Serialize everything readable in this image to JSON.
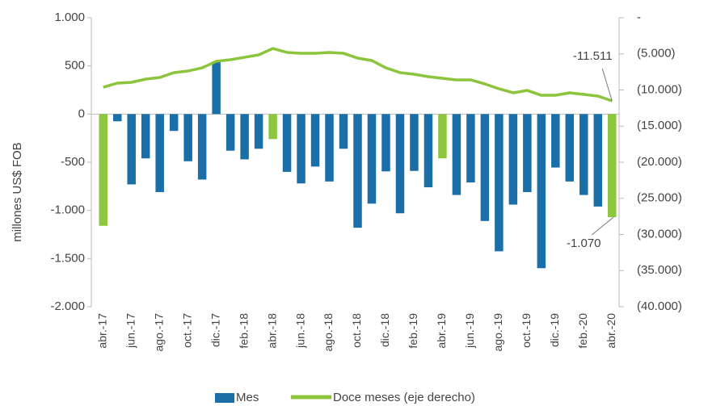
{
  "chart_data": {
    "type": "bar",
    "y_label": "millones US$ FOB",
    "categories": [
      "abr.-17",
      null,
      "jun.-17",
      null,
      "ago.-17",
      null,
      "oct.-17",
      null,
      "dic.-17",
      null,
      "feb.-18",
      null,
      "abr.-18",
      null,
      "jun.-18",
      null,
      "ago.-18",
      null,
      "oct.-18",
      null,
      "dic.-18",
      null,
      "feb.-19",
      null,
      "abr.-19",
      null,
      "jun.-19",
      null,
      "ago.-19",
      null,
      "oct.-19",
      null,
      "dic.-19",
      null,
      "feb.-20",
      null,
      "abr.-20"
    ],
    "ylim": [
      -2000,
      1000
    ],
    "yticks": [
      {
        "value": 1000,
        "label": "1.000"
      },
      500,
      0,
      -500,
      {
        "value": -1000,
        "label": "-1.000"
      },
      {
        "value": -1500,
        "label": "-1.500"
      },
      {
        "value": -2000,
        "label": "-2.000"
      }
    ],
    "y2lim": [
      -40000,
      0
    ],
    "y2ticks": [
      {
        "value": 0,
        "label": "-"
      },
      {
        "value": -5000,
        "label": "(5.000)"
      },
      {
        "value": -10000,
        "label": "(10.000)"
      },
      {
        "value": -15000,
        "label": "(15.000)"
      },
      {
        "value": -20000,
        "label": "(20.000)"
      },
      {
        "value": -25000,
        "label": "(25.000)"
      },
      {
        "value": -30000,
        "label": "(30.000)"
      },
      {
        "value": -35000,
        "label": "(35.000)"
      },
      {
        "value": -40000,
        "label": "(40.000)"
      }
    ],
    "series": [
      {
        "name": "Mes",
        "type": "bar",
        "color": "#1a6fa8",
        "colors": [
          "#8dc63f",
          "#1a6fa8",
          "#1a6fa8",
          "#1a6fa8",
          "#1a6fa8",
          "#1a6fa8",
          "#1a6fa8",
          "#1a6fa8",
          "#1a6fa8",
          "#1a6fa8",
          "#1a6fa8",
          "#1a6fa8",
          "#8dc63f",
          "#1a6fa8",
          "#1a6fa8",
          "#1a6fa8",
          "#1a6fa8",
          "#1a6fa8",
          "#1a6fa8",
          "#1a6fa8",
          "#1a6fa8",
          "#1a6fa8",
          "#1a6fa8",
          "#1a6fa8",
          "#8dc63f",
          "#1a6fa8",
          "#1a6fa8",
          "#1a6fa8",
          "#1a6fa8",
          "#1a6fa8",
          "#1a6fa8",
          "#1a6fa8",
          "#1a6fa8",
          "#1a6fa8",
          "#1a6fa8",
          "#1a6fa8",
          "#8dc63f"
        ],
        "values": [
          -1160,
          -75,
          -730,
          -460,
          -810,
          -175,
          -490,
          -680,
          545,
          -380,
          -470,
          -360,
          -260,
          -600,
          -720,
          -545,
          -700,
          -360,
          -1180,
          -930,
          -595,
          -1030,
          -590,
          -760,
          -460,
          -840,
          -710,
          -1110,
          -1425,
          -940,
          -810,
          -1600,
          -555,
          -700,
          -840,
          -960,
          -1070
        ],
        "value_labels": [
          null,
          null,
          null,
          null,
          null,
          null,
          null,
          null,
          null,
          null,
          null,
          null,
          null,
          null,
          null,
          null,
          null,
          null,
          null,
          null,
          null,
          null,
          null,
          null,
          null,
          null,
          null,
          null,
          null,
          null,
          null,
          null,
          null,
          null,
          null,
          null,
          "-1.070"
        ]
      },
      {
        "name": "Doce meses (eje derecho)",
        "type": "line",
        "axis": "y2",
        "color": "#8cc43c",
        "values": [
          -9610,
          -9050,
          -8940,
          -8490,
          -8270,
          -7600,
          -7370,
          -6930,
          -6030,
          -5810,
          -5470,
          -5140,
          -4250,
          -4800,
          -4920,
          -4920,
          -4800,
          -4920,
          -5590,
          -5920,
          -6930,
          -7600,
          -7820,
          -8160,
          -8380,
          -8600,
          -8600,
          -9160,
          -9830,
          -10390,
          -10060,
          -10730,
          -10730,
          -10390,
          -10620,
          -10840,
          -11511
        ],
        "value_labels": [
          null,
          null,
          null,
          null,
          null,
          null,
          null,
          null,
          null,
          null,
          null,
          null,
          null,
          null,
          null,
          null,
          null,
          null,
          null,
          null,
          null,
          null,
          null,
          null,
          null,
          null,
          null,
          null,
          null,
          null,
          null,
          null,
          null,
          null,
          null,
          null,
          "-11.511"
        ]
      }
    ],
    "label_color": "#e8473f"
  }
}
